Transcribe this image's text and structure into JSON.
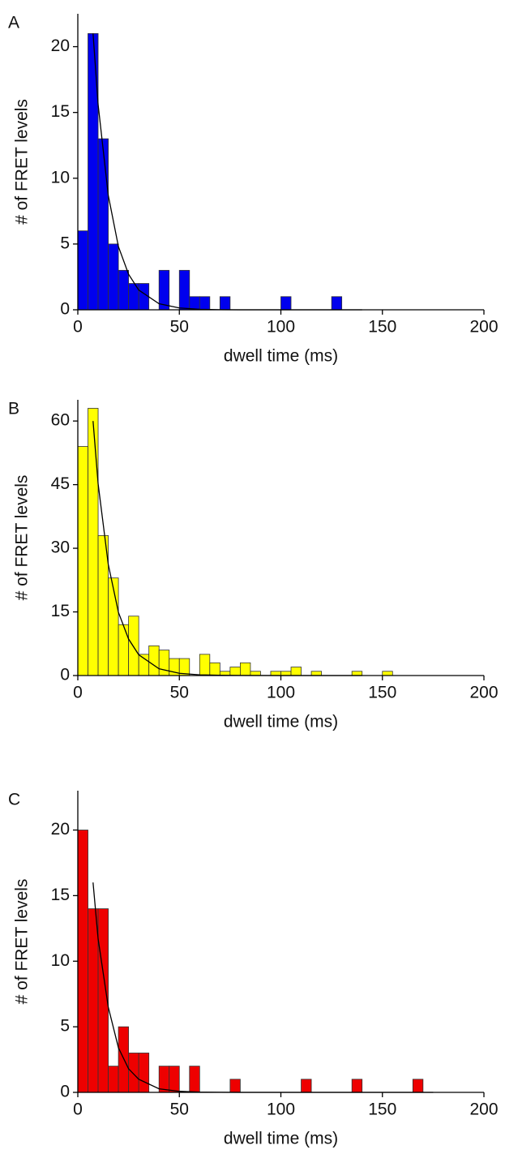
{
  "chart_data": [
    {
      "type": "histogram",
      "panel": "A",
      "xlabel": "dwell time (ms)",
      "ylabel": "# of FRET levels",
      "color": "#0000ee",
      "bins": [
        0,
        5,
        10,
        15,
        20,
        25,
        30,
        35,
        40,
        45,
        50,
        55,
        60,
        65,
        70,
        75,
        80,
        85,
        90,
        95,
        100,
        105,
        110,
        115,
        120,
        125,
        130
      ],
      "counts": [
        6,
        21,
        13,
        5,
        3,
        2,
        2,
        0,
        3,
        0,
        3,
        1,
        1,
        0,
        1,
        0,
        0,
        0,
        0,
        0,
        1,
        0,
        0,
        0,
        0,
        1
      ],
      "fit": {
        "x": [
          7.5,
          10,
          15,
          20,
          25,
          30,
          40,
          50,
          60,
          70,
          80,
          100,
          120,
          140
        ],
        "y": [
          21,
          15.6,
          8.7,
          4.8,
          2.7,
          1.5,
          0.46,
          0.14,
          0.04,
          0.01,
          0,
          0,
          0,
          0
        ]
      },
      "xlim": [
        0,
        200
      ],
      "ylim": [
        0,
        22.5
      ],
      "xticks": [
        0,
        50,
        100,
        150,
        200
      ],
      "yticks": [
        0,
        5,
        10,
        15,
        20
      ]
    },
    {
      "type": "histogram",
      "panel": "B",
      "xlabel": "dwell time (ms)",
      "ylabel": "# of FRET levels",
      "color": "#ffff00",
      "bins": [
        0,
        5,
        10,
        15,
        20,
        25,
        30,
        35,
        40,
        45,
        50,
        55,
        60,
        65,
        70,
        75,
        80,
        85,
        90,
        95,
        100,
        105,
        110,
        115,
        120,
        125,
        130,
        135,
        140,
        145,
        150,
        155
      ],
      "counts": [
        54,
        63,
        33,
        23,
        12,
        14,
        5,
        7,
        6,
        4,
        4,
        0,
        5,
        3,
        1,
        2,
        3,
        1,
        0,
        1,
        1,
        2,
        0,
        1,
        0,
        0,
        0,
        1,
        0,
        0,
        1
      ],
      "fit": {
        "x": [
          7.5,
          10,
          15,
          20,
          25,
          30,
          40,
          50,
          60,
          70,
          80,
          100,
          120,
          140
        ],
        "y": [
          60,
          45.2,
          26.2,
          14.9,
          8.6,
          4.9,
          1.6,
          0.53,
          0.17,
          0.06,
          0.02,
          0,
          0,
          0
        ]
      },
      "xlim": [
        0,
        200
      ],
      "ylim": [
        0,
        65
      ],
      "xticks": [
        0,
        50,
        100,
        150,
        200
      ],
      "yticks": [
        0,
        15,
        30,
        45,
        60
      ]
    },
    {
      "type": "histogram",
      "panel": "C",
      "xlabel": "dwell time (ms)",
      "ylabel": "# of FRET levels",
      "color": "#ee0000",
      "bins": [
        0,
        5,
        10,
        15,
        20,
        25,
        30,
        35,
        40,
        45,
        50,
        55,
        60,
        65,
        70,
        75,
        80,
        85,
        90,
        95,
        100,
        105,
        110,
        115,
        120,
        125,
        130,
        135,
        140,
        145,
        150,
        155,
        160,
        165,
        170
      ],
      "counts": [
        20,
        14,
        14,
        2,
        5,
        3,
        3,
        0,
        2,
        2,
        0,
        2,
        0,
        0,
        0,
        1,
        0,
        0,
        0,
        0,
        0,
        0,
        1,
        0,
        0,
        0,
        0,
        1,
        0,
        0,
        0,
        0,
        0,
        1
      ],
      "fit": {
        "x": [
          7.5,
          10,
          15,
          20,
          25,
          30,
          40,
          50,
          60,
          70,
          80,
          100,
          120,
          150,
          175
        ],
        "y": [
          16,
          11.7,
          6.5,
          3.4,
          1.8,
          1.0,
          0.27,
          0.08,
          0.02,
          0.01,
          0,
          0,
          0,
          0,
          0
        ]
      },
      "xlim": [
        0,
        200
      ],
      "ylim": [
        0,
        23
      ],
      "xticks": [
        0,
        50,
        100,
        150,
        200
      ],
      "yticks": [
        0,
        5,
        10,
        15,
        20
      ]
    }
  ]
}
